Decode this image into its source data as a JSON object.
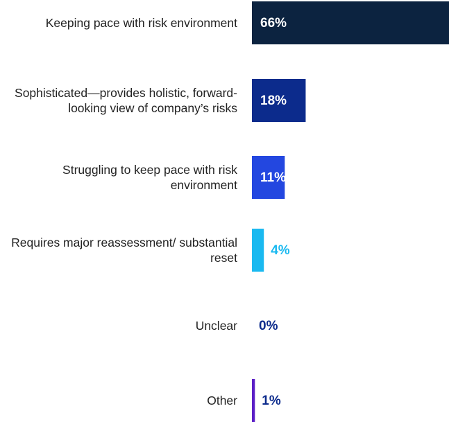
{
  "chart_data": {
    "type": "hbar",
    "categories": [
      "Keeping pace with risk environment",
      "Sophisticated—provides holistic, forward-looking view of company’s risks",
      "Struggling to keep pace with risk environment",
      "Requires major reassessment/ substantial reset",
      "Unclear",
      "Other"
    ],
    "values": [
      66,
      18,
      11,
      4,
      0,
      1
    ],
    "value_labels": [
      "66%",
      "18%",
      "11%",
      "4%",
      "0%",
      "1%"
    ],
    "colors": [
      "#0c2340",
      "#0c2b8c",
      "#2347e0",
      "#1ab9f0",
      "#0c2b8c",
      "#5b1fc6"
    ],
    "label_colors": [
      "#ffffff",
      "#ffffff",
      "#ffffff",
      "#1ab9f0",
      "#0c2b8c",
      "#0c2b8c"
    ],
    "xlim": [
      0,
      66
    ]
  }
}
